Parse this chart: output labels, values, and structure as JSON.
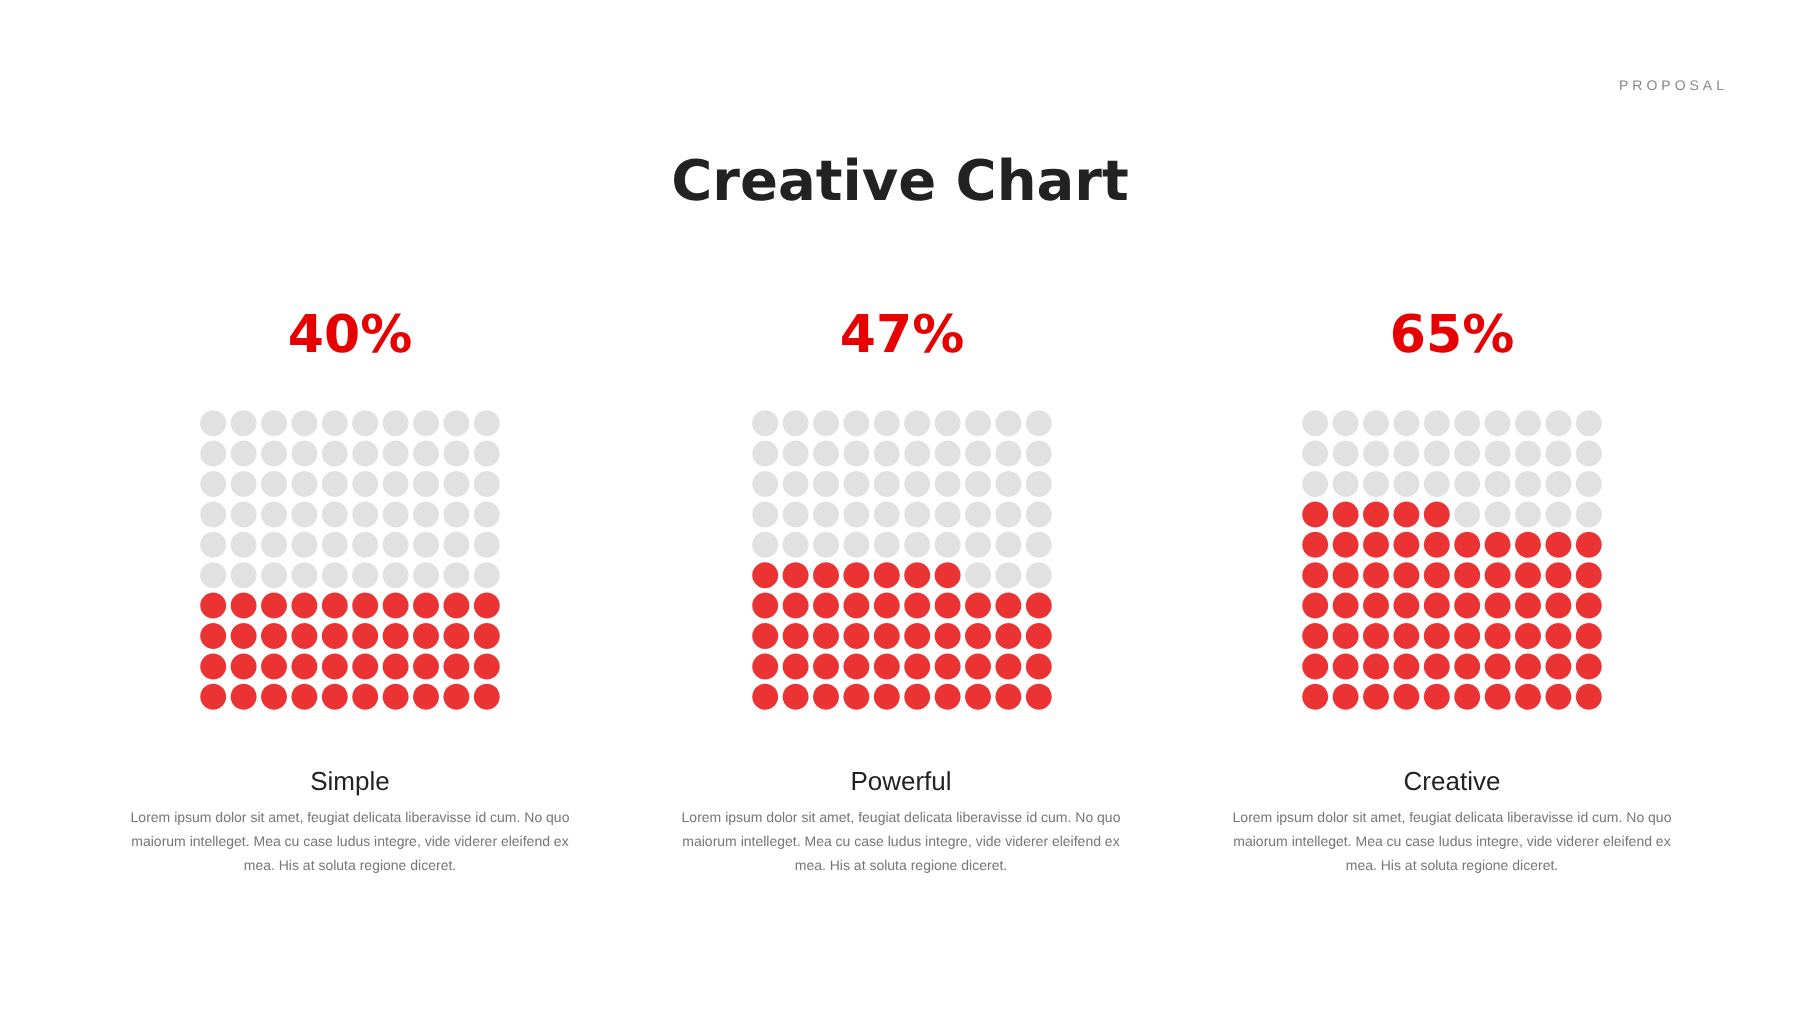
{
  "chart_data": [
    {
      "type": "other",
      "title": "Creative Chart",
      "annotations": [
        "PROPOSAL"
      ]
    },
    {
      "type": "other",
      "categories": [
        "Simple"
      ],
      "values": [
        40
      ],
      "value_labels": [
        "40%"
      ],
      "color": "#e60000",
      "annotations": [
        "Lorem ipsum dolor sit amet, feugiat delicata liberavisse id cum. No quo maiorum intelleget. Mea cu case ludus integre, vide viderer eleifend ex mea. His at soluta regione diceret."
      ]
    },
    {
      "type": "other",
      "categories": [
        "Powerful"
      ],
      "values": [
        47
      ],
      "value_labels": [
        "47%"
      ],
      "color": "#e60000",
      "annotations": [
        "Lorem ipsum dolor sit amet, feugiat delicata liberavisse id cum. No quo maiorum intelleget. Mea cu case ludus integre, vide viderer eleifend ex mea. His at soluta regione diceret."
      ]
    },
    {
      "type": "other",
      "categories": [
        "Creative"
      ],
      "values": [
        65
      ],
      "value_labels": [
        "65%"
      ],
      "color": "#e60000",
      "annotations": [
        "Lorem ipsum dolor sit amet, feugiat delicata liberavisse id cum. No quo maiorum intelleget. Mea cu case ludus integre, vide viderer eleifend ex mea. His at soluta regione diceret."
      ]
    }
  ]
}
